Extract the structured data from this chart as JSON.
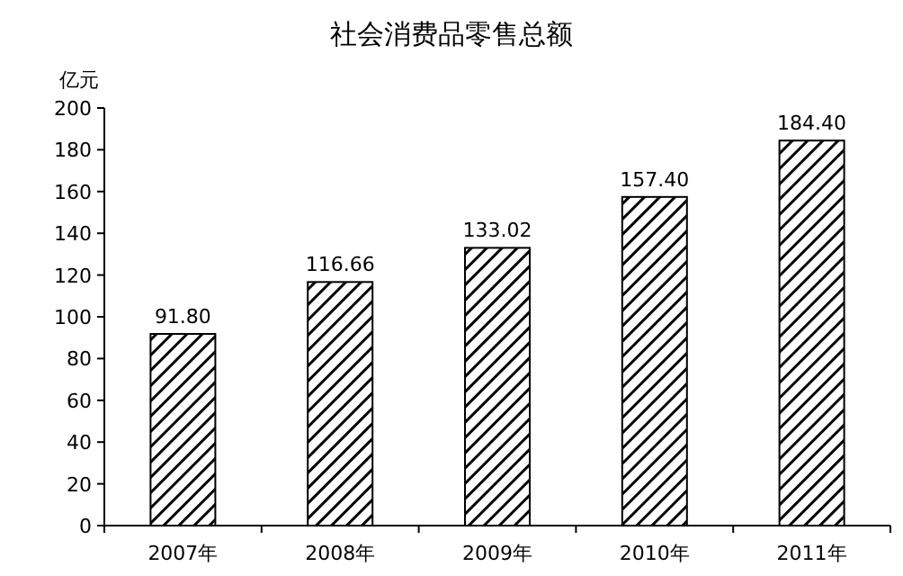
{
  "chart_data": {
    "type": "bar",
    "title": "社会消费品零售总额",
    "ylabel": "亿元",
    "categories": [
      "2007年",
      "2008年",
      "2009年",
      "2010年",
      "2011年"
    ],
    "values": [
      91.8,
      116.66,
      133.02,
      157.4,
      184.4
    ],
    "value_labels": [
      "91.80",
      "116.66",
      "133.02",
      "157.40",
      "184.40"
    ],
    "color": "#000000",
    "ylim": [
      0,
      200
    ],
    "yticks": [
      0,
      20,
      40,
      60,
      80,
      100,
      120,
      140,
      160,
      180,
      200
    ]
  }
}
